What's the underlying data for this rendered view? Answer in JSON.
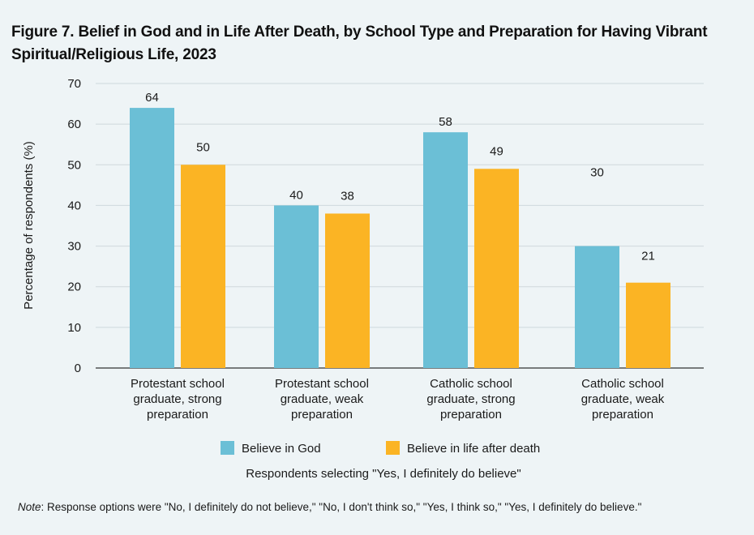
{
  "title_lines": [
    "Figure 7. Belief in God and in Life After Death, by School Type and Preparation for Having Vibrant",
    "Spiritual/Religious Life, 2023"
  ],
  "note_label": "Note",
  "note_text": ": Response options were \"No, I definitely do not believe,\" \"No, I don't think so,\" \"Yes, I think so,\" \"Yes, I definitely do believe.\"",
  "colors": {
    "god": "#6bbfd6",
    "afterlife": "#fbb424",
    "grid": "#cfd8dc",
    "axis": "#333333"
  },
  "chart_data": {
    "type": "bar",
    "categories": [
      [
        "Protestant school",
        "graduate, strong",
        "preparation"
      ],
      [
        "Protestant school",
        "graduate, weak",
        "preparation"
      ],
      [
        "Catholic school",
        "graduate, strong",
        "preparation"
      ],
      [
        "Catholic school",
        "graduate, weak",
        "preparation"
      ]
    ],
    "series": [
      {
        "name": "Believe in God",
        "values": [
          64,
          40,
          58,
          30
        ]
      },
      {
        "name": "Believe in life after death",
        "values": [
          50,
          38,
          49,
          21
        ]
      }
    ],
    "ylabel": "Percentage of respondents (%)",
    "xlabel": "Respondents selecting \"Yes, I definitely do believe\"",
    "ylim": [
      0,
      70
    ],
    "yticks": [
      0,
      10,
      20,
      30,
      40,
      50,
      60,
      70
    ],
    "grid": true,
    "legend": "bottom"
  }
}
